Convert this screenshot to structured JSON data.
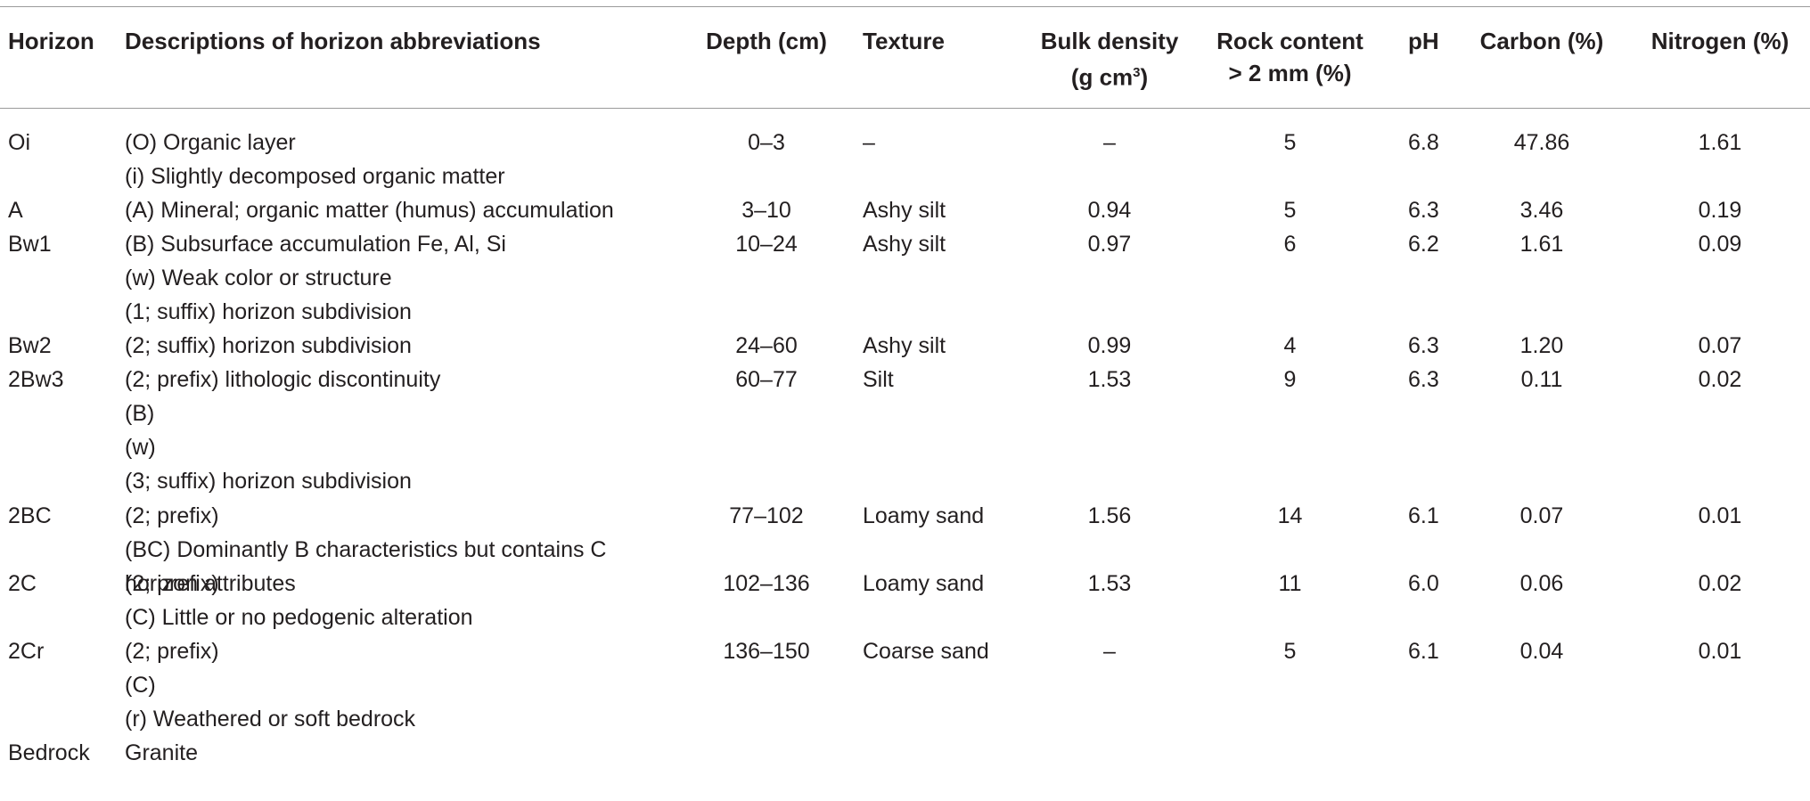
{
  "table": {
    "headers": {
      "horizon": "Horizon",
      "descriptions": "Descriptions of horizon abbreviations",
      "depth": "Depth (cm)",
      "texture": "Texture",
      "bulk_density_1": "Bulk density",
      "bulk_density_2": "(g cm",
      "bulk_density_sup": "3",
      "bulk_density_3": ")",
      "rock_content_1": "Rock content",
      "rock_content_2": "> 2 mm (%)",
      "ph": "pH",
      "carbon": "Carbon (%)",
      "nitrogen": "Nitrogen (%)"
    },
    "rows": [
      {
        "horizon": "Oi",
        "desc": [
          "(O) Organic layer",
          "(i) Slightly decomposed organic matter"
        ],
        "depth": "0–3",
        "texture": "–",
        "bulk": "–",
        "rock": "5",
        "ph": "6.8",
        "carbon": "47.86",
        "nitrogen": "1.61"
      },
      {
        "horizon": "A",
        "desc": [
          "(A) Mineral; organic matter (humus) accumulation"
        ],
        "depth": "3–10",
        "texture": "Ashy silt",
        "bulk": "0.94",
        "rock": "5",
        "ph": "6.3",
        "carbon": "3.46",
        "nitrogen": "0.19"
      },
      {
        "horizon": "Bw1",
        "desc": [
          "(B) Subsurface accumulation Fe, Al, Si",
          "(w) Weak color or structure",
          "(1; suffix) horizon subdivision"
        ],
        "depth": "10–24",
        "texture": "Ashy silt",
        "bulk": "0.97",
        "rock": "6",
        "ph": "6.2",
        "carbon": "1.61",
        "nitrogen": "0.09"
      },
      {
        "horizon": "Bw2",
        "desc": [
          "(2; suffix) horizon subdivision"
        ],
        "depth": "24–60",
        "texture": "Ashy silt",
        "bulk": "0.99",
        "rock": "4",
        "ph": "6.3",
        "carbon": "1.20",
        "nitrogen": "0.07"
      },
      {
        "horizon": "2Bw3",
        "desc": [
          "(2; prefix) lithologic discontinuity",
          "(B)",
          "(w)",
          "(3; suffix) horizon subdivision"
        ],
        "depth": "60–77",
        "texture": "Silt",
        "bulk": "1.53",
        "rock": "9",
        "ph": "6.3",
        "carbon": "0.11",
        "nitrogen": "0.02"
      },
      {
        "horizon": "2BC",
        "desc": [
          "(2; prefix)",
          "(BC) Dominantly B characteristics but contains C",
          "horizon attributes"
        ],
        "depth": "77–102",
        "texture": "Loamy sand",
        "bulk": "1.56",
        "rock": "14",
        "ph": "6.1",
        "carbon": "0.07",
        "nitrogen": "0.01"
      },
      {
        "horizon": "2C",
        "desc": [
          "(2; prefix)",
          "(C) Little or no pedogenic alteration"
        ],
        "depth": "102–136",
        "texture": "Loamy sand",
        "bulk": "1.53",
        "rock": "11",
        "ph": "6.0",
        "carbon": "0.06",
        "nitrogen": "0.02"
      },
      {
        "horizon": "2Cr",
        "desc": [
          "(2; prefix)",
          "(C)",
          "(r) Weathered or soft bedrock"
        ],
        "depth": "136–150",
        "texture": "Coarse sand",
        "bulk": "–",
        "rock": "5",
        "ph": "6.1",
        "carbon": "0.04",
        "nitrogen": "0.01"
      },
      {
        "horizon": "Bedrock",
        "desc": [
          "Granite"
        ],
        "depth": "",
        "texture": "",
        "bulk": "",
        "rock": "",
        "ph": "",
        "carbon": "",
        "nitrogen": ""
      }
    ]
  }
}
